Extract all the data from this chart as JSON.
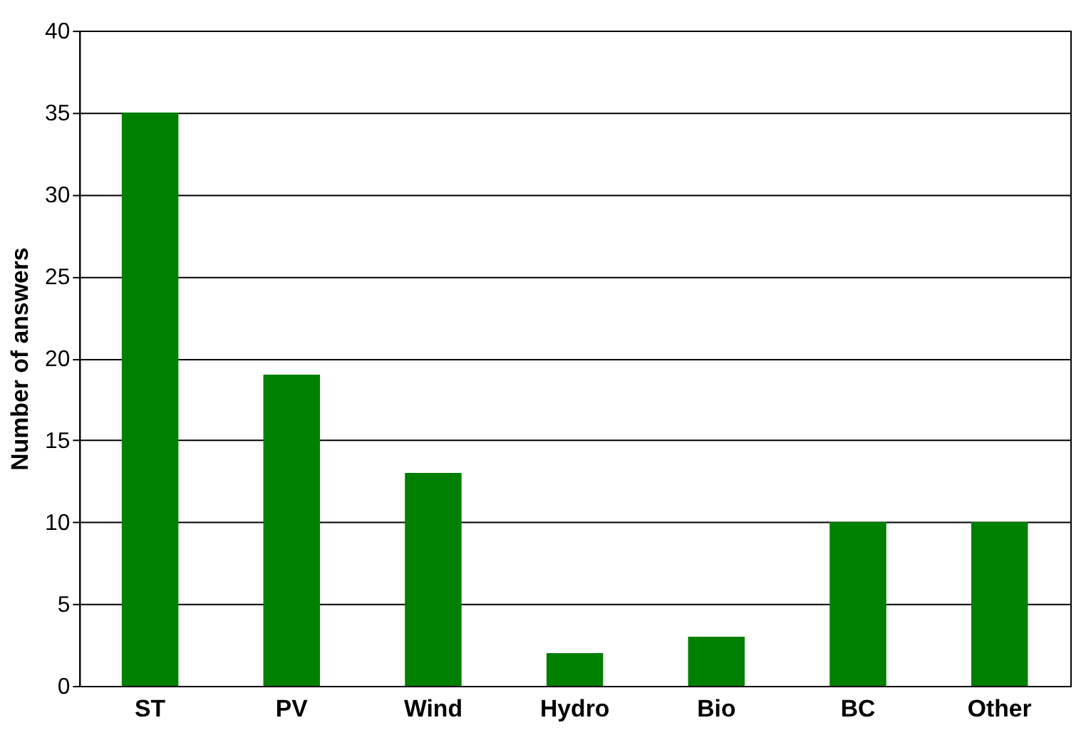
{
  "chart_data": {
    "type": "bar",
    "ylabel": "Number of answers",
    "categories": [
      "ST",
      "PV",
      "Wind",
      "Hydro",
      "Bio",
      "BC",
      "Other"
    ],
    "values": [
      35,
      19,
      13,
      2,
      3,
      10,
      10
    ],
    "color": "#008000",
    "ylim": [
      0,
      40
    ],
    "yticks": [
      0,
      5,
      10,
      15,
      20,
      25,
      30,
      35,
      40
    ],
    "grid": "y"
  }
}
